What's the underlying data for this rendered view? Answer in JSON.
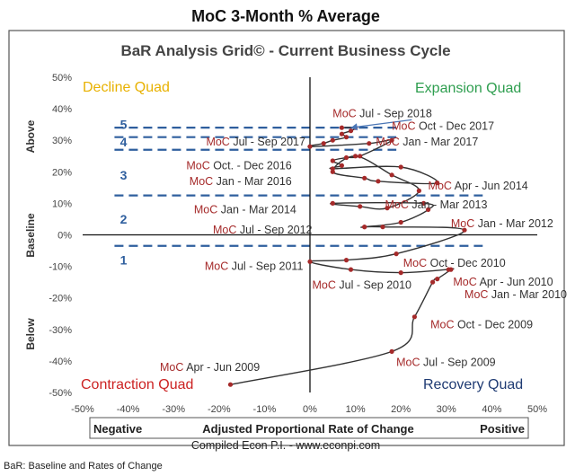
{
  "chart_data": {
    "type": "line",
    "title": "MoC 3-Month % Average",
    "subtitle": "BaR Analysis Grid© - Current Business Cycle",
    "xlabel": "Adjusted Proportional Rate of Change",
    "x_left_label": "Negative",
    "x_right_label": "Positive",
    "ylabel_segments": [
      "Above",
      "Baseline",
      "Below"
    ],
    "xlim": [
      -50,
      50
    ],
    "ylim": [
      -50,
      50
    ],
    "x_ticks": [
      "-50%",
      "-40%",
      "-30%",
      "-20%",
      "-10%",
      "0%",
      "10%",
      "20%",
      "30%",
      "40%",
      "50%"
    ],
    "y_ticks": [
      "50%",
      "40%",
      "30%",
      "20%",
      "10%",
      "0%",
      "-10%",
      "-20%",
      "-30%",
      "-40%",
      "-50%"
    ],
    "quadrants": {
      "top_left": "Decline Quad",
      "top_right": "Expansion Quad",
      "bottom_left": "Contraction Quad",
      "bottom_right": "Recovery Quad"
    },
    "quadrant_colors": {
      "top_left": "#e8b100",
      "top_right": "#2e9e4f",
      "bottom_left": "#cc2222",
      "bottom_right": "#1f3b73"
    },
    "bands": [
      {
        "label": "1",
        "y": -3.5
      },
      {
        "label": "2",
        "y": 12.5
      },
      {
        "label": "3",
        "y": 27
      },
      {
        "label": "4",
        "y": 31
      },
      {
        "label": "5",
        "y": 34
      }
    ],
    "band_labels": [
      {
        "label": "1",
        "y": -8
      },
      {
        "label": "2",
        "y": 5
      },
      {
        "label": "3",
        "y": 19
      },
      {
        "label": "4",
        "y": 29.5
      },
      {
        "label": "5",
        "y": 35
      }
    ],
    "series": [
      {
        "x": [
          -17.5,
          18,
          23,
          27,
          28,
          31,
          30.5,
          20,
          9,
          0,
          8,
          19,
          34,
          16,
          12,
          12,
          20,
          26,
          25,
          5,
          11,
          17,
          24,
          18,
          10,
          5,
          12,
          15,
          28,
          20,
          5,
          7,
          5,
          8,
          11,
          18,
          13,
          0,
          3,
          5,
          8,
          7,
          9,
          10,
          7
        ],
        "y": [
          -47.5,
          -37,
          -26,
          -15,
          -14,
          -11,
          -11,
          -12,
          -11,
          -8.5,
          -8,
          -6,
          1.5,
          2.5,
          2.5,
          2.5,
          4,
          8,
          10,
          10,
          9,
          8.5,
          14,
          19,
          25,
          20,
          18,
          17,
          16.5,
          21.5,
          21,
          22,
          23.5,
          24.5,
          25,
          30,
          29,
          28,
          29,
          30,
          31,
          32,
          33,
          34,
          34
        ]
      }
    ],
    "annotations": [
      {
        "text": "MoC Jul - Sep 2018",
        "x": 5,
        "y": 38.5,
        "color_from": "MoC",
        "arrow_to": [
          9,
          34
        ]
      },
      {
        "text": "MoC Oct - Dec 2017",
        "x": 18,
        "y": 34.5
      },
      {
        "text": "MoC Jul - Sep 2017",
        "x": -1,
        "y": 29.5,
        "align": "end"
      },
      {
        "text": "MoC Jan - Mar 2017",
        "x": 14.5,
        "y": 29.5
      },
      {
        "text": "MoC Oct. - Dec 2016",
        "x": -4,
        "y": 22,
        "align": "end"
      },
      {
        "text": "MoC Jan - Mar 2016",
        "x": -4,
        "y": 17,
        "align": "end"
      },
      {
        "text": "MoC Apr - Jun 2014",
        "x": 26,
        "y": 15.5
      },
      {
        "text": "MoC Jan - Mar 2014",
        "x": -3,
        "y": 8,
        "align": "end"
      },
      {
        "text": "MoC Jan - Mar 2013",
        "x": 16.5,
        "y": 9.5
      },
      {
        "text": "MoC Jul - Sep 2012",
        "x": 0.5,
        "y": 1.5,
        "align": "end"
      },
      {
        "text": "MoC Jan - Mar 2012",
        "x": 31,
        "y": 3.5
      },
      {
        "text": "MoC Oct - Dec 2010",
        "x": 20.5,
        "y": -9
      },
      {
        "text": "MoC  Jul - Sep 2011",
        "x": -1.5,
        "y": -10,
        "align": "end"
      },
      {
        "text": "MoC Apr - Jun 2010",
        "x": 31.5,
        "y": -15
      },
      {
        "text": "MoC Jul - Sep 2010",
        "x": 0.5,
        "y": -16
      },
      {
        "text": "MoC Jan - Mar 2010",
        "x": 34,
        "y": -19
      },
      {
        "text": "MoC Oct - Dec 2009",
        "x": 26.5,
        "y": -28.5
      },
      {
        "text": "MoC Jul - Sep  2009",
        "x": 19,
        "y": -40.5
      },
      {
        "text": "MoC Apr - Jun 2009",
        "x": -33,
        "y": -42
      }
    ],
    "grid": false,
    "line_color": "#333333",
    "point_color": "#a52a2a",
    "band_color": "#2f5f9e",
    "annotation_prefix_color": "#a52a2a"
  },
  "footer": {
    "source": "Compiled Econ P.I. - www.econpi.com",
    "note": "BaR: Baseline and Rates of Change"
  }
}
